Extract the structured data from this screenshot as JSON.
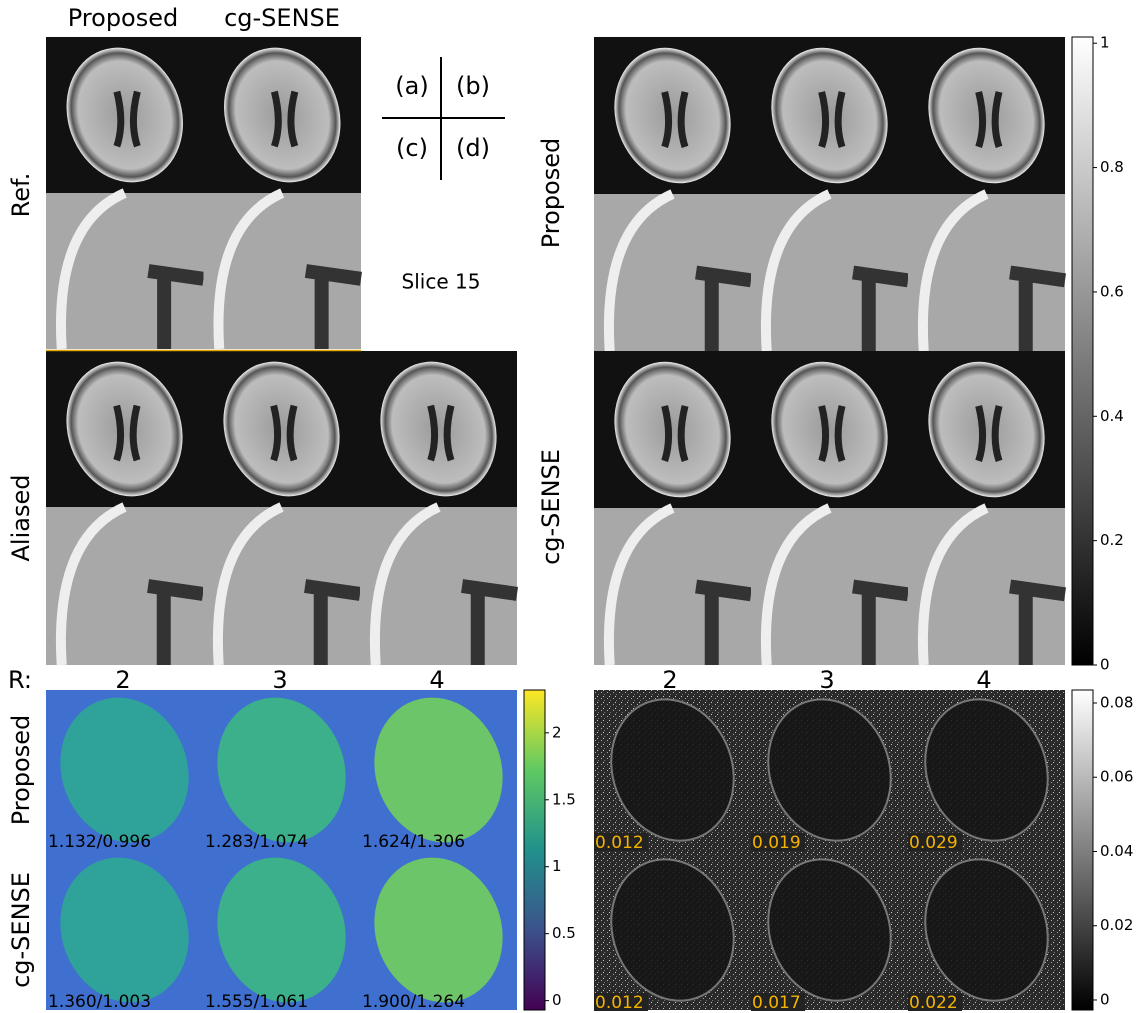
{
  "panel_a": {
    "col_labels": [
      "Proposed",
      "cg-SENSE"
    ],
    "row_labels": [
      "Ref.",
      "Aliased"
    ]
  },
  "key": {
    "a": "(a)",
    "b": "(b)",
    "c": "(c)",
    "d": "(d)",
    "slice": "Slice 15"
  },
  "panel_b": {
    "row_labels": [
      "Proposed",
      "cg-SENSE"
    ],
    "colorbar": {
      "lim": [
        0,
        1.01
      ],
      "ticks": [
        0,
        0.2,
        0.4,
        0.6,
        0.8,
        1
      ]
    }
  },
  "panel_c": {
    "r_label": "R:",
    "r_values": [
      2,
      3,
      4
    ],
    "row_labels": [
      "Proposed",
      "cg-SENSE"
    ],
    "annotations": [
      [
        "1.132/0.996",
        "1.283/1.074",
        "1.624/1.306"
      ],
      [
        "1.360/1.003",
        "1.555/1.061",
        "1.900/1.264"
      ]
    ],
    "colorbar": {
      "lim": [
        -0.07,
        2.32
      ],
      "ticks": [
        0,
        0.5,
        1,
        1.5,
        2
      ]
    }
  },
  "panel_d": {
    "r_values": [
      2,
      3,
      4
    ],
    "annotations": [
      [
        "0.012",
        "0.019",
        "0.029"
      ],
      [
        "0.012",
        "0.017",
        "0.022"
      ]
    ],
    "colorbar": {
      "lim": [
        -0.0027,
        0.0835
      ],
      "ticks": [
        0,
        0.02,
        0.04,
        0.06,
        0.08
      ]
    }
  }
}
